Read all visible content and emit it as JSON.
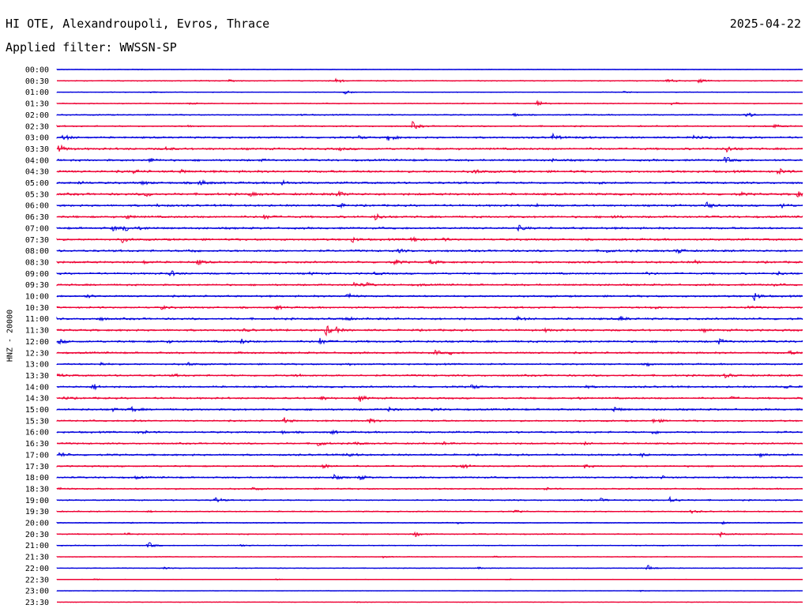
{
  "header": {
    "title": "HI OTE, Alexandroupoli, Evros, Thrace",
    "date": "2025-04-22",
    "filter": "Applied filter: WWSSN-SP"
  },
  "colors": {
    "even_trace": "#0000dd",
    "odd_trace": "#ee0033"
  },
  "chart_data": {
    "type": "line",
    "ylabel": "HNZ - 20000",
    "row_labels": [
      "00:00",
      "00:30",
      "01:00",
      "01:30",
      "02:00",
      "02:30",
      "03:00",
      "03:30",
      "04:00",
      "04:30",
      "05:00",
      "05:30",
      "06:00",
      "06:30",
      "07:00",
      "07:30",
      "08:00",
      "08:30",
      "09:00",
      "09:30",
      "10:00",
      "10:30",
      "11:00",
      "11:30",
      "12:00",
      "12:30",
      "13:00",
      "13:30",
      "14:00",
      "14:30",
      "15:00",
      "15:30",
      "16:00",
      "16:30",
      "17:00",
      "17:30",
      "18:00",
      "18:30",
      "19:00",
      "19:30",
      "20:00",
      "20:30",
      "21:00",
      "21:30",
      "22:00",
      "22:30",
      "23:00",
      "23:30"
    ],
    "row_noise": [
      0.3,
      0.5,
      0.4,
      0.5,
      0.6,
      0.7,
      0.9,
      1.0,
      1.0,
      1.1,
      1.0,
      1.1,
      1.0,
      1.0,
      1.0,
      1.0,
      1.0,
      1.0,
      0.9,
      0.9,
      0.9,
      0.9,
      1.0,
      1.0,
      1.0,
      0.9,
      0.8,
      0.9,
      0.9,
      0.9,
      0.9,
      0.8,
      0.9,
      0.8,
      0.9,
      0.8,
      0.8,
      0.7,
      0.7,
      0.6,
      0.5,
      0.6,
      0.5,
      0.4,
      0.4,
      0.3,
      0.3,
      0.3
    ],
    "events": [
      [
        [
          170,
          0.8
        ]
      ],
      [
        [
          290,
          1
        ],
        [
          425,
          3
        ],
        [
          845,
          3
        ],
        [
          885,
          3
        ]
      ],
      [
        [
          190,
          1.5
        ],
        [
          437,
          3
        ],
        [
          790,
          1
        ]
      ],
      [
        [
          240,
          1
        ],
        [
          680,
          4
        ],
        [
          850,
          2
        ]
      ],
      [
        [
          380,
          1
        ],
        [
          650,
          2
        ],
        [
          945,
          4
        ]
      ],
      [
        [
          240,
          1.5
        ],
        [
          522,
          5
        ],
        [
          980,
          2
        ]
      ],
      [
        [
          80,
          4
        ],
        [
          455,
          2
        ],
        [
          492,
          5
        ],
        [
          700,
          4
        ],
        [
          735,
          2
        ],
        [
          878,
          3
        ]
      ],
      [
        [
          75,
          5
        ],
        [
          210,
          2
        ],
        [
          430,
          1.5
        ],
        [
          920,
          4
        ]
      ],
      [
        [
          190,
          2.5
        ],
        [
          330,
          1
        ],
        [
          700,
          1.5
        ],
        [
          918,
          4
        ]
      ],
      [
        [
          170,
          2
        ],
        [
          230,
          1.5
        ],
        [
          600,
          3
        ],
        [
          985,
          4
        ]
      ],
      [
        [
          100,
          1.5
        ],
        [
          180,
          2
        ],
        [
          253,
          4
        ],
        [
          357,
          3
        ],
        [
          755,
          2
        ]
      ],
      [
        [
          185,
          3
        ],
        [
          317,
          2
        ],
        [
          427,
          4
        ],
        [
          935,
          2
        ],
        [
          1010,
          3
        ]
      ],
      [
        [
          200,
          1.5
        ],
        [
          428,
          3
        ],
        [
          680,
          1.5
        ],
        [
          895,
          4
        ],
        [
          990,
          3
        ]
      ],
      [
        [
          160,
          2.5
        ],
        [
          335,
          3
        ],
        [
          475,
          4
        ],
        [
          775,
          2
        ]
      ],
      [
        [
          143,
          3
        ],
        [
          158,
          4
        ],
        [
          178,
          2
        ],
        [
          657,
          3
        ]
      ],
      [
        [
          155,
          3
        ],
        [
          445,
          3.5
        ],
        [
          522,
          4
        ],
        [
          560,
          1.5
        ]
      ],
      [
        [
          240,
          2.5
        ],
        [
          505,
          2
        ],
        [
          765,
          2.5
        ],
        [
          858,
          3
        ]
      ],
      [
        [
          183,
          1.5
        ],
        [
          250,
          3
        ],
        [
          498,
          4
        ],
        [
          545,
          3
        ],
        [
          880,
          1.5
        ]
      ],
      [
        [
          215,
          4
        ],
        [
          393,
          1.5
        ],
        [
          475,
          1.5
        ],
        [
          820,
          1.5
        ],
        [
          985,
          2
        ]
      ],
      [
        [
          448,
          3
        ],
        [
          462,
          3
        ],
        [
          530,
          1
        ],
        [
          975,
          1.5
        ]
      ],
      [
        [
          110,
          2
        ],
        [
          440,
          4
        ],
        [
          955,
          5
        ]
      ],
      [
        [
          205,
          2
        ],
        [
          350,
          2.5
        ],
        [
          825,
          2.5
        ],
        [
          945,
          2
        ]
      ],
      [
        [
          125,
          2
        ],
        [
          435,
          3
        ],
        [
          655,
          2.5
        ],
        [
          785,
          3
        ]
      ],
      [
        [
          310,
          1.5
        ],
        [
          413,
          6
        ],
        [
          425,
          2.5
        ],
        [
          690,
          1.5
        ],
        [
          890,
          1.5
        ]
      ],
      [
        [
          75,
          2.5
        ],
        [
          210,
          2
        ],
        [
          305,
          3
        ],
        [
          405,
          4
        ],
        [
          910,
          3
        ]
      ],
      [
        [
          300,
          1
        ],
        [
          550,
          3
        ],
        [
          570,
          1.5
        ],
        [
          1000,
          2
        ]
      ],
      [
        [
          128,
          2
        ],
        [
          238,
          2
        ],
        [
          440,
          1.5
        ],
        [
          820,
          1.5
        ]
      ],
      [
        [
          75,
          2
        ],
        [
          220,
          1.5
        ],
        [
          375,
          2
        ],
        [
          918,
          2.5
        ]
      ],
      [
        [
          118,
          4
        ],
        [
          598,
          3
        ],
        [
          740,
          1.5
        ],
        [
          995,
          2
        ]
      ],
      [
        [
          80,
          1.5
        ],
        [
          407,
          2.5
        ],
        [
          456,
          3.5
        ],
        [
          730,
          1.5
        ],
        [
          925,
          1.5
        ]
      ],
      [
        [
          142,
          2
        ],
        [
          165,
          4
        ],
        [
          493,
          3
        ],
        [
          548,
          2
        ],
        [
          777,
          3.5
        ]
      ],
      [
        [
          170,
          1.5
        ],
        [
          360,
          3.5
        ],
        [
          467,
          3
        ],
        [
          828,
          3.5
        ]
      ],
      [
        [
          177,
          3
        ],
        [
          358,
          1.5
        ],
        [
          420,
          2
        ],
        [
          827,
          2.5
        ]
      ],
      [
        [
          403,
          3.5
        ],
        [
          450,
          2
        ],
        [
          562,
          1.5
        ],
        [
          740,
          1.5
        ]
      ],
      [
        [
          76,
          3
        ],
        [
          440,
          4
        ],
        [
          812,
          2
        ],
        [
          962,
          1.5
        ]
      ],
      [
        [
          410,
          3
        ],
        [
          585,
          3.5
        ],
        [
          740,
          2
        ]
      ],
      [
        [
          172,
          1.5
        ],
        [
          423,
          3
        ],
        [
          455,
          3
        ],
        [
          838,
          1.5
        ]
      ],
      [
        [
          75,
          1.5
        ],
        [
          320,
          1.5
        ],
        [
          690,
          1.5
        ]
      ],
      [
        [
          273,
          3.5
        ],
        [
          760,
          2
        ],
        [
          848,
          4
        ]
      ],
      [
        [
          188,
          1
        ],
        [
          652,
          1.5
        ],
        [
          875,
          2
        ]
      ],
      [
        [
          245,
          1
        ],
        [
          580,
          1
        ],
        [
          915,
          1.5
        ]
      ],
      [
        [
          160,
          2
        ],
        [
          525,
          3.5
        ],
        [
          912,
          3
        ]
      ],
      [
        [
          188,
          4
        ],
        [
          305,
          1
        ]
      ],
      [
        [
          485,
          1
        ],
        [
          625,
          1
        ]
      ],
      [
        [
          208,
          1
        ],
        [
          605,
          1
        ],
        [
          820,
          4
        ]
      ],
      [
        [
          120,
          0.8
        ],
        [
          350,
          0.8
        ],
        [
          640,
          1
        ]
      ],
      [
        [
          170,
          0.5
        ],
        [
          810,
          0.8
        ]
      ],
      [
        [
          95,
          0.5
        ],
        [
          450,
          0.8
        ]
      ]
    ]
  }
}
